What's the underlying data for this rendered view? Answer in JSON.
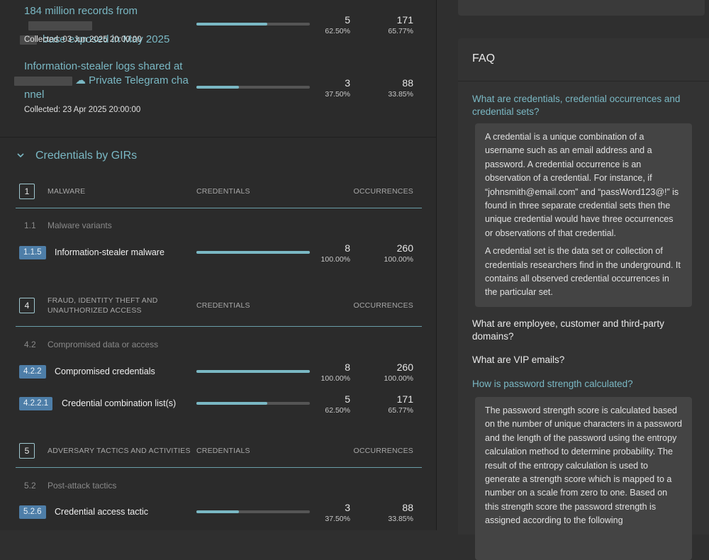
{
  "sources": [
    {
      "title_before": "184 million records from",
      "title_after": "base exposed in May 2025",
      "collected": "Collected:  03 Jun 2025 20:00:00",
      "credentials": "5",
      "credentials_pct": "62.50%",
      "occurrences": "171",
      "occurrences_pct": "65.77%",
      "fill": 0.625
    },
    {
      "title_line1": "Information-stealer logs shared at",
      "title_line2": "☁ Private Telegram cha",
      "title_line3": "nnel",
      "collected": "Collected:  23 Apr 2025 20:00:00",
      "credentials": "3",
      "credentials_pct": "37.50%",
      "occurrences": "88",
      "occurrences_pct": "33.85%",
      "fill": 0.375
    }
  ],
  "section": {
    "title": "Credentials by GIRs",
    "chevron_icon": "chevron-down-icon"
  },
  "girs": [
    {
      "number": "1",
      "name": "MALWARE",
      "col_credentials": "CREDENTIALS",
      "col_occurrences": "OCCURRENCES",
      "sub_code": "1.1",
      "sub_name": "Malware variants",
      "rows": [
        {
          "code": "1.1.5",
          "label": "Information-stealer malware",
          "credentials": "8",
          "credentials_pct": "100.00%",
          "occurrences": "260",
          "occurrences_pct": "100.00%",
          "fill": 1.0
        }
      ]
    },
    {
      "number": "4",
      "name_line1": "FRAUD, IDENTITY THEFT AND",
      "name_line2": "UNAUTHORIZED ACCESS",
      "col_credentials": "CREDENTIALS",
      "col_occurrences": "OCCURRENCES",
      "sub_code": "4.2",
      "sub_name": "Compromised data or access",
      "rows": [
        {
          "code": "4.2.2",
          "label": "Compromised credentials",
          "credentials": "8",
          "credentials_pct": "100.00%",
          "occurrences": "260",
          "occurrences_pct": "100.00%",
          "fill": 1.0
        },
        {
          "code": "4.2.2.1",
          "label": "Credential combination list(s)",
          "credentials": "5",
          "credentials_pct": "62.50%",
          "occurrences": "171",
          "occurrences_pct": "65.77%",
          "fill": 0.625
        }
      ]
    },
    {
      "number": "5",
      "name": "ADVERSARY TACTICS AND ACTIVITIES",
      "col_credentials": "CREDENTIALS",
      "col_occurrences": "OCCURRENCES",
      "sub_code": "5.2",
      "sub_name": "Post-attack tactics",
      "rows": [
        {
          "code": "5.2.6",
          "label": "Credential access tactic",
          "credentials": "3",
          "credentials_pct": "37.50%",
          "occurrences": "88",
          "occurrences_pct": "33.85%",
          "fill": 0.375
        }
      ]
    }
  ],
  "faq": {
    "title": "FAQ",
    "items": [
      {
        "question": "What are credentials, credential occurrences and credential sets?",
        "open": true,
        "answer_p1": "A credential is a unique combination of a username such as an email address and a password. A credential occurrence is an observation of a credential. For instance, if “johnsmith@email.com” and “passWord123@!” is found in three separate credential sets then the unique credential would have three occurrences or observations of that credential.",
        "answer_p2": "A credential set is the data set or collection of credentials researchers find in the underground. It contains all observed credential occurrences in the particular set."
      },
      {
        "question": "What are employee, customer and third-party domains?",
        "open": false
      },
      {
        "question": "What are VIP emails?",
        "open": false
      },
      {
        "question": "How is password strength calculated?",
        "open": true,
        "answer_p1": "The password strength score is calculated based on the number of unique characters in a password and the length of the password using the entropy calculation method to determine probability. The result of the entropy calculation is used to generate a strength score which is mapped to a number on a scale from zero to one. Based on this strength score the password strength is assigned according to the following"
      }
    ]
  },
  "colors": {
    "accent": "#7ab8c4",
    "code_badge": "#4e7ea8",
    "panel_bg": "#2b2b2b",
    "faq_bg": "#333333",
    "answer_bg": "#444444"
  }
}
